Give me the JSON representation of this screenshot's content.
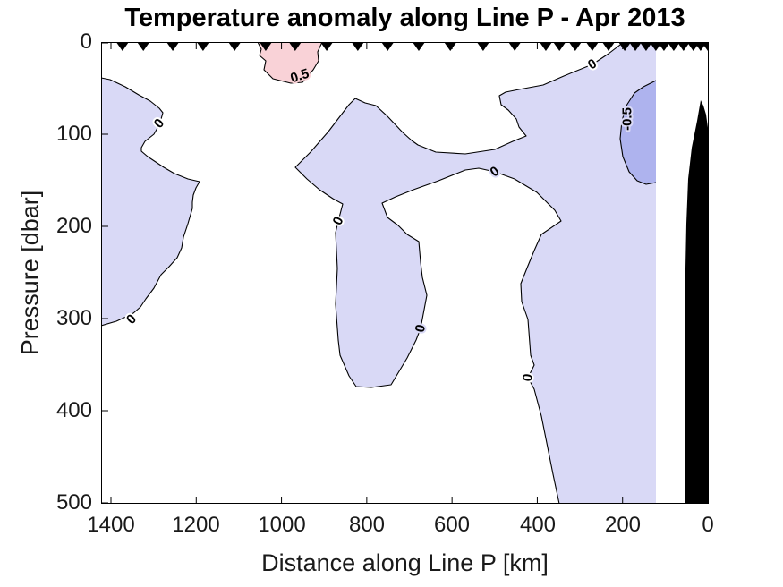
{
  "figure": {
    "title": "Temperature anomaly along Line P - Apr 2013",
    "xlabel": "Distance along Line P [km]",
    "ylabel": "Pressure [dbar]"
  },
  "chart_data": {
    "type": "filled-contour-section",
    "title": "Temperature anomaly along Line P - Apr 2013",
    "xlabel": "Distance along Line P [km]",
    "ylabel": "Pressure [dbar]",
    "x_axis": {
      "min": 0,
      "max": 1400,
      "reversed": true,
      "units": "km",
      "ticks": [
        1400,
        1200,
        1000,
        800,
        600,
        400,
        200,
        0
      ]
    },
    "y_axis": {
      "min": 0,
      "max": 500,
      "increases_downward": true,
      "units": "dbar",
      "ticks": [
        0,
        100,
        200,
        300,
        400,
        500
      ]
    },
    "contour_levels": [
      -0.5,
      0,
      0.5
    ],
    "colors": {
      "anomaly_neg_0_to_-0.5": "#d9d9f6",
      "anomaly_below_-0.5": "#aeb3ee",
      "anomaly_0.5_to_1": "#f9d2d7",
      "anomaly_0_to_0.5": "#ffffff",
      "bathymetry_mask": "#000000",
      "contour_line": "#000000",
      "axis_text": "#1a1a1a"
    },
    "regions": [
      {
        "level": "-0.5 to 0",
        "color": "#d9d9f6",
        "areas": [
          "west patch ~1420-1190 km, 38-305 dbar",
          "central tongue ~970-650 km, 60-375 dbar",
          "eastern mass ~770-120 km, 45-500 dbar (reaches surface 200-120 km)"
        ]
      },
      {
        "level": "below -0.5",
        "color": "#aeb3ee",
        "areas": [
          "~205-120 km, 40-155 dbar"
        ]
      },
      {
        "level": "0.5 to 1",
        "color": "#f9d2d7",
        "areas": [
          "surface patch ~1060-905 km, 0-45 dbar"
        ]
      },
      {
        "level": "bathymetry / coast mask",
        "color": "#000000",
        "areas": [
          "~20-0 km, below ~60 dbar"
        ]
      }
    ],
    "contour_labels": [
      {
        "text": "0",
        "km": 271,
        "dbar": 24
      },
      {
        "text": "0",
        "km": 500,
        "dbar": 141
      },
      {
        "text": "0",
        "km": 867,
        "dbar": 194
      },
      {
        "text": "0",
        "km": 674,
        "dbar": 311
      },
      {
        "text": "0",
        "km": 1287,
        "dbar": 88
      },
      {
        "text": "0",
        "km": 1352,
        "dbar": 301
      },
      {
        "text": "0",
        "km": 422,
        "dbar": 364
      },
      {
        "text": "0.5",
        "km": 957,
        "dbar": 37
      },
      {
        "text": "-0.5",
        "km": 189,
        "dbar": 83
      }
    ],
    "stations_km": [
      1373,
      1324,
      1255,
      1184,
      1110,
      1037,
      968,
      894,
      821,
      751,
      678,
      604,
      527,
      453,
      380,
      348,
      311,
      271,
      233,
      195,
      170,
      145,
      122,
      103,
      80,
      57,
      34,
      17,
      0
    ]
  }
}
